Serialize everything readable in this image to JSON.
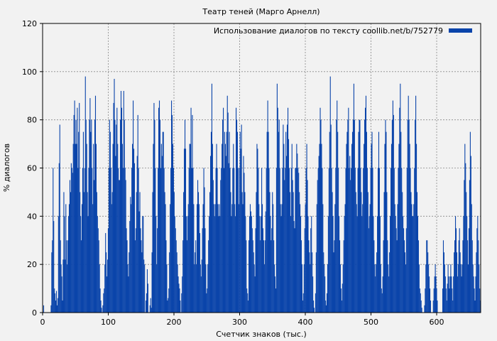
{
  "chart_data": {
    "type": "bar",
    "title": "Театр теней (Марго Арнелл)",
    "xlabel": "Счетчик знаков (тыс.)",
    "ylabel": "% диалогов",
    "xlim": [
      0,
      667
    ],
    "ylim": [
      0,
      120
    ],
    "xticks": [
      0,
      100,
      200,
      300,
      400,
      500,
      600
    ],
    "yticks": [
      0,
      20,
      40,
      60,
      80,
      100,
      120
    ],
    "grid": true,
    "legend_position": "top-right",
    "series": [
      {
        "name": "Использование диалогов по тексту coollib.net/b/752779",
        "color": "#0a44aa",
        "values": [
          0,
          3,
          0,
          0,
          0,
          0,
          0,
          0,
          0,
          0,
          0,
          0,
          3,
          25,
          30,
          60,
          38,
          10,
          8,
          5,
          9,
          3,
          6,
          40,
          62,
          78,
          30,
          20,
          15,
          5,
          22,
          50,
          40,
          22,
          45,
          30,
          20,
          30,
          40,
          45,
          55,
          50,
          62,
          60,
          58,
          70,
          82,
          88,
          70,
          80,
          70,
          85,
          60,
          75,
          87,
          50,
          40,
          30,
          45,
          60,
          75,
          50,
          60,
          98,
          80,
          70,
          50,
          40,
          60,
          80,
          89,
          75,
          80,
          60,
          45,
          70,
          55,
          80,
          90,
          70,
          50,
          40,
          35,
          30,
          20,
          10,
          5,
          2,
          0,
          3,
          8,
          10,
          20,
          33,
          25,
          15,
          22,
          35,
          60,
          80,
          75,
          60,
          45,
          50,
          70,
          87,
          97,
          80,
          65,
          78,
          85,
          70,
          60,
          55,
          55,
          80,
          92,
          85,
          70,
          60,
          92,
          80,
          60,
          55,
          35,
          30,
          20,
          15,
          25,
          38,
          48,
          45,
          60,
          70,
          88,
          68,
          62,
          30,
          35,
          50,
          65,
          82,
          60,
          42,
          50,
          35,
          30,
          25,
          40,
          40,
          22,
          20,
          0,
          5,
          8,
          18,
          12,
          0,
          0,
          3,
          6,
          2,
          25,
          50,
          70,
          87,
          80,
          60,
          40,
          20,
          35,
          60,
          85,
          88,
          80,
          60,
          70,
          65,
          75,
          75,
          60,
          50,
          45,
          30,
          20,
          5,
          6,
          10,
          25,
          45,
          60,
          88,
          82,
          70,
          60,
          50,
          40,
          35,
          30,
          25,
          20,
          15,
          12,
          10,
          5,
          0,
          8,
          15,
          30,
          50,
          68,
          80,
          68,
          40,
          30,
          40,
          45,
          60,
          70,
          70,
          85,
          60,
          82,
          60,
          45,
          20,
          25,
          30,
          20,
          45,
          55,
          50,
          45,
          33,
          20,
          15,
          22,
          35,
          45,
          60,
          52,
          35,
          20,
          8,
          10,
          20,
          30,
          40,
          50,
          65,
          75,
          95,
          70,
          55,
          45,
          40,
          45,
          60,
          70,
          60,
          45,
          40,
          45,
          40,
          55,
          60,
          70,
          80,
          85,
          60,
          75,
          70,
          65,
          75,
          90,
          83,
          62,
          75,
          60,
          50,
          40,
          45,
          60,
          70,
          60,
          45,
          40,
          85,
          80,
          75,
          60,
          45,
          60,
          75,
          68,
          78,
          50,
          45,
          65,
          58,
          50,
          40,
          30,
          10,
          8,
          5,
          30,
          40,
          45,
          42,
          40,
          35,
          30,
          25,
          20,
          15,
          35,
          50,
          70,
          68,
          60,
          45,
          40,
          30,
          40,
          60,
          45,
          35,
          30,
          20,
          30,
          42,
          60,
          75,
          88,
          75,
          60,
          50,
          40,
          30,
          35,
          50,
          45,
          30,
          20,
          15,
          10,
          60,
          95,
          85,
          75,
          80,
          60,
          45,
          40,
          45,
          60,
          78,
          70,
          55,
          60,
          75,
          65,
          78,
          85,
          72,
          60,
          50,
          40,
          60,
          70,
          55,
          50,
          38,
          35,
          60,
          60,
          70,
          66,
          60,
          58,
          50,
          45,
          40,
          30,
          20,
          5,
          8,
          20,
          35,
          45,
          60,
          70,
          55,
          40,
          30,
          25,
          20,
          35,
          40,
          25,
          15,
          5,
          2,
          0,
          8,
          25,
          45,
          55,
          60,
          65,
          70,
          85,
          80,
          70,
          60,
          45,
          25,
          20,
          15,
          5,
          3,
          8,
          20,
          40,
          60,
          75,
          98,
          78,
          60,
          50,
          40,
          25,
          30,
          45,
          60,
          80,
          88,
          75,
          60,
          40,
          30,
          20,
          10,
          5,
          12,
          20,
          30,
          40,
          45,
          60,
          70,
          75,
          80,
          85,
          60,
          65,
          55,
          60,
          70,
          75,
          80,
          95,
          80,
          60,
          50,
          45,
          40,
          60,
          75,
          80,
          80,
          60,
          50,
          40,
          45,
          60,
          70,
          80,
          85,
          90,
          75,
          60,
          50,
          35,
          40,
          45,
          60,
          70,
          75,
          60,
          40,
          30,
          20,
          15,
          20,
          25,
          40,
          60,
          75,
          60,
          40,
          20,
          10,
          8,
          15,
          30,
          50,
          70,
          80,
          75,
          50,
          30,
          20,
          15,
          25,
          40,
          60,
          70,
          80,
          88,
          82,
          60,
          45,
          40,
          35,
          30,
          45,
          60,
          70,
          85,
          95,
          75,
          60,
          50,
          40,
          35,
          30,
          25,
          20,
          35,
          60,
          80,
          90,
          80,
          70,
          60,
          50,
          45,
          40,
          40,
          45,
          60,
          80,
          90,
          70,
          50,
          40,
          30,
          20,
          10,
          8,
          5,
          2,
          0,
          0,
          0,
          3,
          10,
          20,
          30,
          30,
          25,
          20,
          15,
          10,
          5,
          0,
          0,
          0,
          5,
          10,
          15,
          20,
          15,
          10,
          5,
          0,
          0,
          0,
          0,
          0,
          0,
          0,
          10,
          30,
          25,
          20,
          15,
          10,
          5,
          12,
          20,
          15,
          10,
          15,
          20,
          15,
          10,
          5,
          15,
          25,
          30,
          40,
          35,
          25,
          15,
          20,
          30,
          35,
          25,
          20,
          15,
          20,
          30,
          40,
          55,
          70,
          62,
          50,
          40,
          30,
          20,
          35,
          55,
          75,
          65,
          45,
          30,
          20,
          15,
          10,
          5,
          15,
          25,
          35,
          40,
          30,
          20,
          10,
          5
        ]
      }
    ]
  }
}
